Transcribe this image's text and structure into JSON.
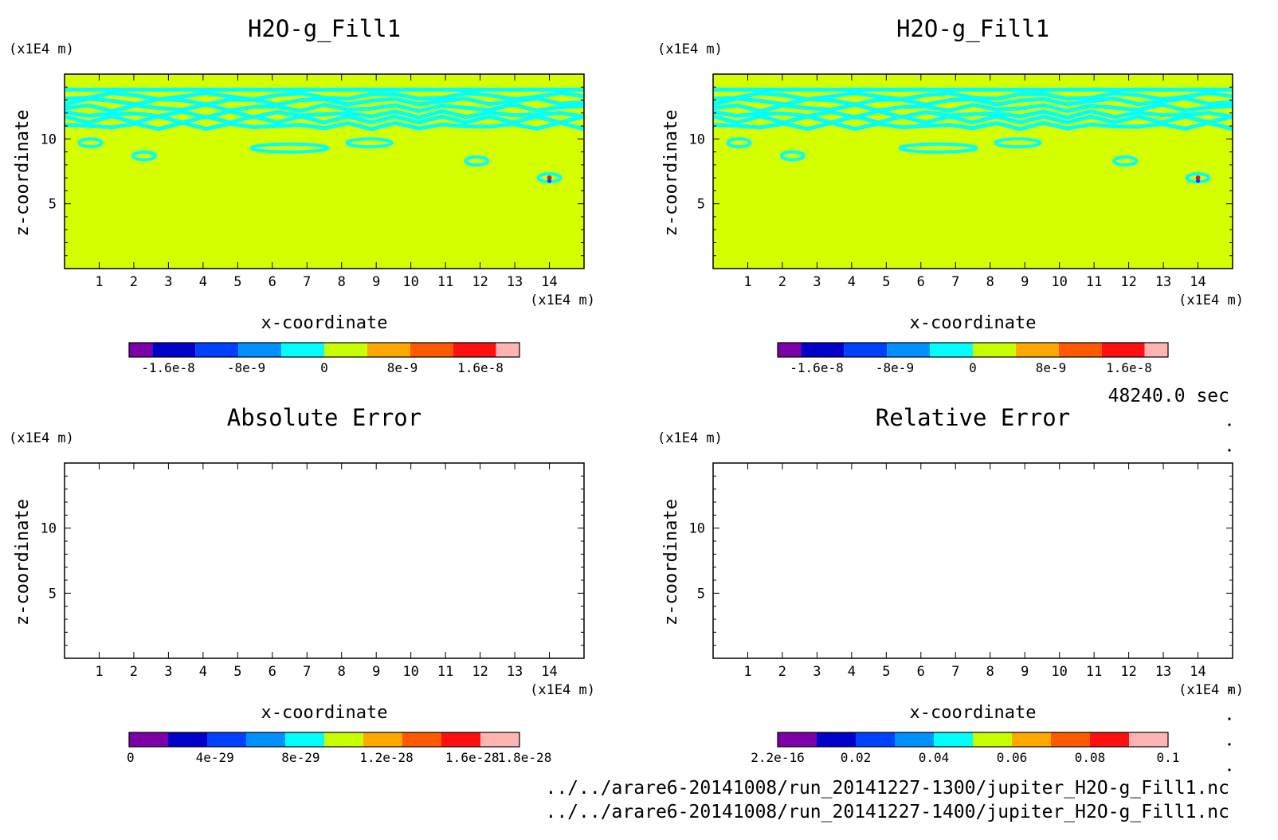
{
  "time_label": "48240.0 sec",
  "files": [
    "../../arare6-20141008/run_20141227-1300/jupiter_H2O-g_Fill1.nc",
    "../../arare6-20141008/run_20141227-1400/jupiter_H2O-g_Fill1.nc"
  ],
  "colors": {
    "field": "#d4ff00",
    "contour": "#00ffff",
    "palette": [
      "#7b00a8",
      "#0000c8",
      "#0040ff",
      "#0090ff",
      "#00ffff",
      "#c8ff00",
      "#ffa800",
      "#ff5a00",
      "#ff1010",
      "#ffb4b4"
    ]
  },
  "chart_data": [
    {
      "type": "heatmap",
      "title": "H2O-g_Fill1",
      "xlabel": "x-coordinate",
      "ylabel": "z-coordinate",
      "x_unit": "(x1E4 m)",
      "y_unit": "(x1E4 m)",
      "xlim": [
        0,
        15
      ],
      "ylim": [
        0,
        15
      ],
      "x_ticks": [
        1,
        2,
        3,
        4,
        5,
        6,
        7,
        8,
        9,
        10,
        11,
        12,
        13,
        14
      ],
      "y_ticks": [
        5,
        10
      ],
      "field": "nearly uniform field at 0 with contour bands of -8e-9..0 near cloud layers",
      "contour_bands_z": [
        13.8,
        13.3,
        12.9,
        12.4,
        11.9,
        11.5,
        11.0
      ],
      "features": [
        {
          "x": 0.75,
          "z": 9.7
        },
        {
          "x": 2.3,
          "z": 8.7
        },
        {
          "x": 11.9,
          "z": 8.3
        },
        {
          "x": 14.0,
          "z": 7.0
        },
        {
          "x": 6.5,
          "z": 9.3
        },
        {
          "x": 8.8,
          "z": 9.7
        }
      ],
      "colorbar": {
        "labels": [
          "-1.6e-8",
          "-8e-9",
          "0",
          "8e-9",
          "1.6e-8"
        ],
        "range": [
          -2e-08,
          2e-08
        ],
        "label_values": [
          -1.6e-08,
          -8e-09,
          0,
          8e-09,
          1.6e-08
        ]
      }
    },
    {
      "type": "heatmap",
      "title": "H2O-g_Fill1",
      "xlabel": "x-coordinate",
      "ylabel": "z-coordinate",
      "x_unit": "(x1E4 m)",
      "y_unit": "(x1E4 m)",
      "xlim": [
        0,
        15
      ],
      "ylim": [
        0,
        15
      ],
      "x_ticks": [
        1,
        2,
        3,
        4,
        5,
        6,
        7,
        8,
        9,
        10,
        11,
        12,
        13,
        14
      ],
      "y_ticks": [
        5,
        10
      ],
      "field": "nearly uniform field at 0 with contour bands of -8e-9..0 near cloud layers",
      "contour_bands_z": [
        13.8,
        13.3,
        12.9,
        12.4,
        11.9,
        11.5,
        11.0
      ],
      "features": [
        {
          "x": 0.75,
          "z": 9.7
        },
        {
          "x": 2.3,
          "z": 8.7
        },
        {
          "x": 11.9,
          "z": 8.3
        },
        {
          "x": 14.0,
          "z": 7.0
        },
        {
          "x": 6.5,
          "z": 9.3
        },
        {
          "x": 8.8,
          "z": 9.7
        }
      ],
      "colorbar": {
        "labels": [
          "-1.6e-8",
          "-8e-9",
          "0",
          "8e-9",
          "1.6e-8"
        ],
        "range": [
          -2e-08,
          2e-08
        ],
        "label_values": [
          -1.6e-08,
          -8e-09,
          0,
          8e-09,
          1.6e-08
        ]
      }
    },
    {
      "type": "heatmap",
      "title": "Absolute Error",
      "xlabel": "x-coordinate",
      "ylabel": "z-coordinate",
      "x_unit": "(x1E4 m)",
      "y_unit": "(x1E4 m)",
      "xlim": [
        0,
        15
      ],
      "ylim": [
        0,
        15
      ],
      "x_ticks": [
        1,
        2,
        3,
        4,
        5,
        6,
        7,
        8,
        9,
        10,
        11,
        12,
        13,
        14
      ],
      "y_ticks": [
        5,
        10
      ],
      "field": "empty",
      "colorbar": {
        "labels": [
          "0",
          "4e-29",
          "8e-29",
          "1.2e-28",
          "1.6e-28",
          "1.8e-28"
        ],
        "range": [
          0,
          1.82e-28
        ],
        "label_values": [
          0,
          4e-29,
          8e-29,
          1.2e-28,
          1.6e-28,
          1.8e-28
        ]
      }
    },
    {
      "type": "heatmap",
      "title": "Relative Error",
      "xlabel": "x-coordinate",
      "ylabel": "z-coordinate",
      "x_unit": "(x1E4 m)",
      "y_unit": "(x1E4 m)",
      "xlim": [
        0,
        15
      ],
      "ylim": [
        0,
        15
      ],
      "x_ticks": [
        1,
        2,
        3,
        4,
        5,
        6,
        7,
        8,
        9,
        10,
        11,
        12,
        13,
        14
      ],
      "y_ticks": [
        5,
        10
      ],
      "field": "empty",
      "colorbar": {
        "labels": [
          "2.2e-16",
          "0.02",
          "0.04",
          "0.06",
          "0.08",
          "0.1"
        ],
        "range": [
          0,
          0.1
        ],
        "label_values": [
          0,
          0.02,
          0.04,
          0.06,
          0.08,
          0.1
        ]
      }
    }
  ]
}
